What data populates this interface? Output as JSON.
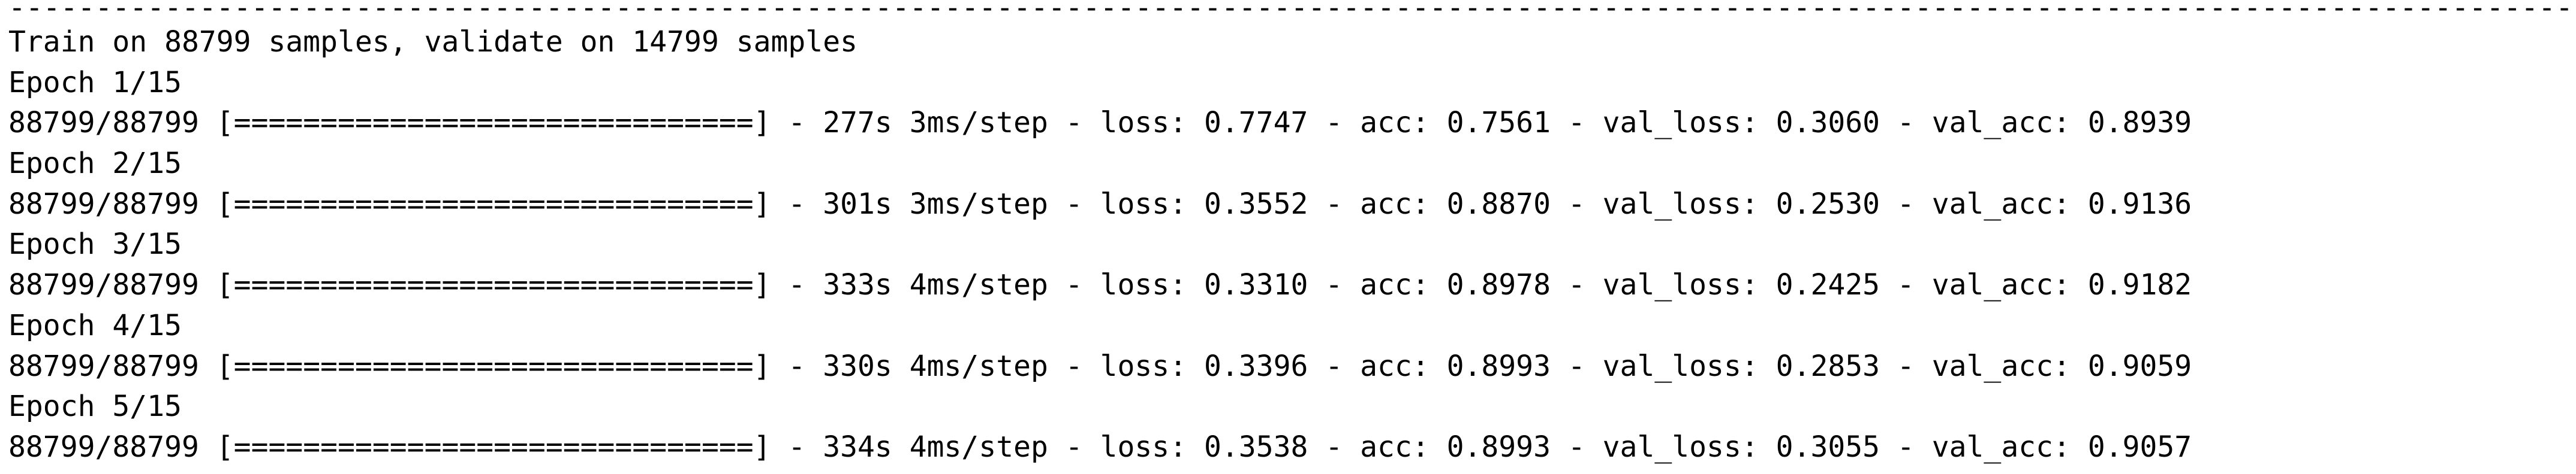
{
  "separator": "----------------------------------------------------------------------------------------------------------------------------------------------------",
  "summary": "Train on 88799 samples, validate on 14799 samples",
  "epochs": [
    {
      "label": "Epoch 1/15",
      "progress": "88799/88799 [==============================] - 277s 3ms/step - loss: 0.7747 - acc: 0.7561 - val_loss: 0.3060 - val_acc: 0.8939"
    },
    {
      "label": "Epoch 2/15",
      "progress": "88799/88799 [==============================] - 301s 3ms/step - loss: 0.3552 - acc: 0.8870 - val_loss: 0.2530 - val_acc: 0.9136"
    },
    {
      "label": "Epoch 3/15",
      "progress": "88799/88799 [==============================] - 333s 4ms/step - loss: 0.3310 - acc: 0.8978 - val_loss: 0.2425 - val_acc: 0.9182"
    },
    {
      "label": "Epoch 4/15",
      "progress": "88799/88799 [==============================] - 330s 4ms/step - loss: 0.3396 - acc: 0.8993 - val_loss: 0.2853 - val_acc: 0.9059"
    },
    {
      "label": "Epoch 5/15",
      "progress": "88799/88799 [==============================] - 334s 4ms/step - loss: 0.3538 - acc: 0.8993 - val_loss: 0.3055 - val_acc: 0.9057"
    }
  ]
}
